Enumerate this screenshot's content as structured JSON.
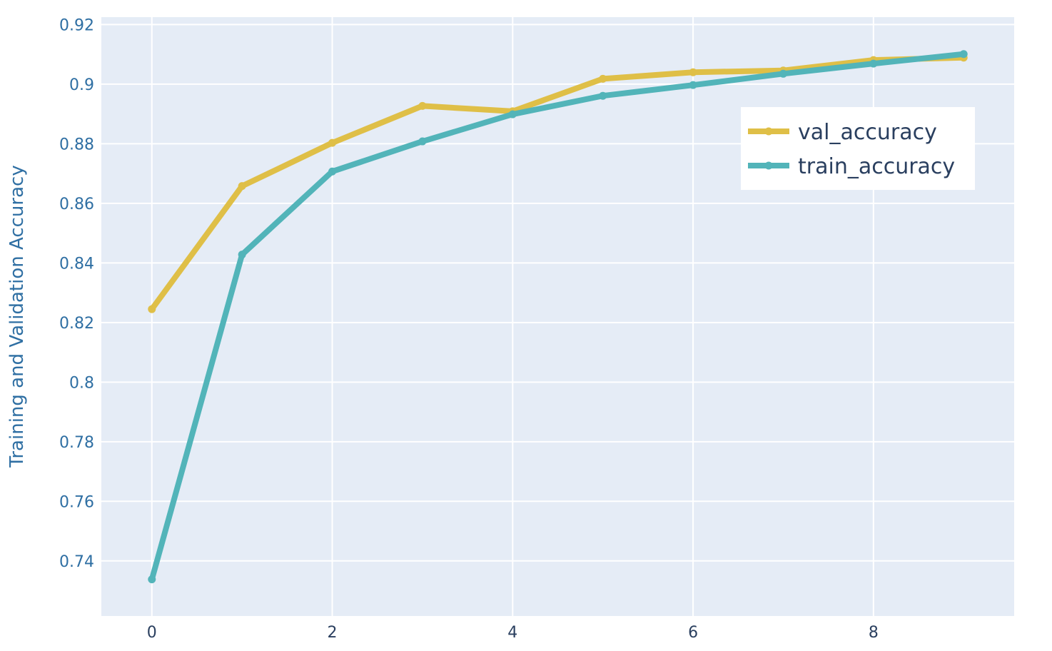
{
  "chart_data": {
    "type": "line",
    "title": "",
    "xlabel": "",
    "ylabel": "Training and Validation Accuracy",
    "x": [
      0,
      1,
      2,
      3,
      4,
      5,
      6,
      7,
      8,
      9
    ],
    "xlim": [
      -0.56,
      9.56
    ],
    "ylim": [
      0.7215,
      0.9225
    ],
    "xticks": [
      0,
      2,
      4,
      6,
      8
    ],
    "xtick_labels": [
      "0",
      "2",
      "4",
      "6",
      "8"
    ],
    "yticks": [
      0.74,
      0.76,
      0.78,
      0.8,
      0.82,
      0.84,
      0.86,
      0.88,
      0.9,
      0.92
    ],
    "ytick_labels": [
      "0.74",
      "0.76",
      "0.78",
      "0.8",
      "0.82",
      "0.84",
      "0.86",
      "0.88",
      "0.9",
      "0.92"
    ],
    "grid": true,
    "legend_position": "top-right",
    "series": [
      {
        "name": "val_accuracy",
        "color": "#dfbf47",
        "values": [
          0.8245,
          0.8658,
          0.8803,
          0.8927,
          0.8909,
          0.9018,
          0.904,
          0.9046,
          0.9081,
          0.9089
        ]
      },
      {
        "name": "train_accuracy",
        "color": "#52b4b9",
        "values": [
          0.7338,
          0.8428,
          0.8707,
          0.8808,
          0.8899,
          0.8961,
          0.8997,
          0.9035,
          0.9069,
          0.9101
        ]
      }
    ]
  }
}
